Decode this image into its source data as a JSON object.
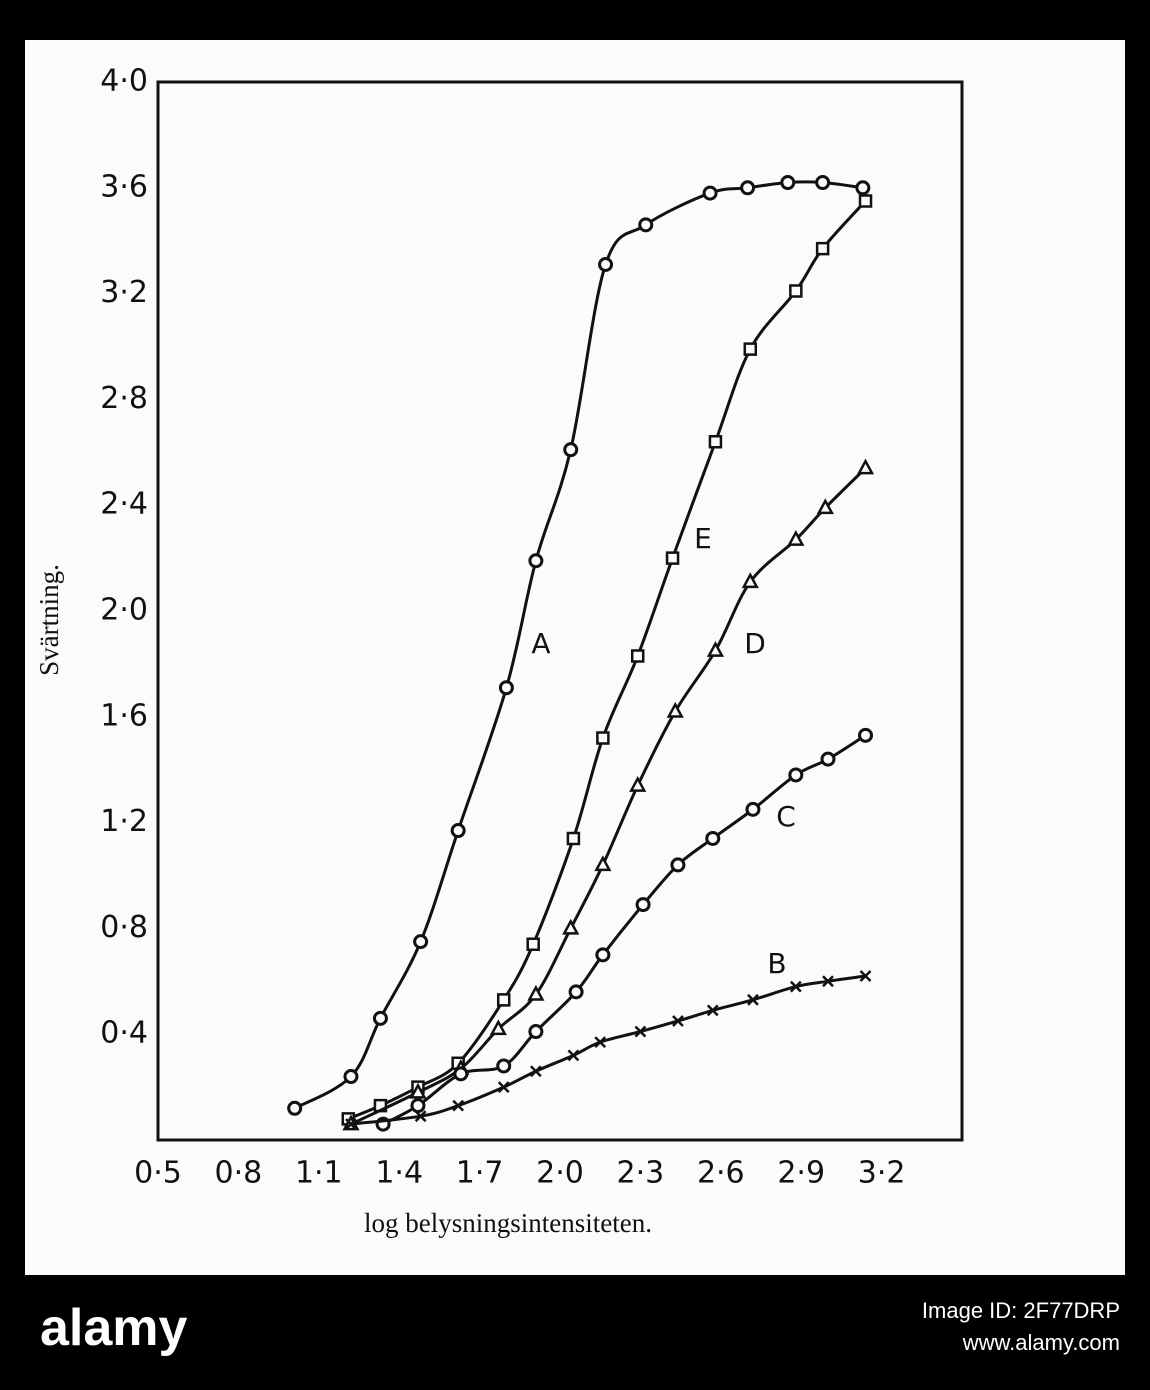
{
  "chart_data": {
    "type": "line",
    "xlabel": "log belysningsintensiteten.",
    "ylabel": "Svärtning.",
    "xlim": [
      0.5,
      3.5
    ],
    "ylim": [
      0,
      4.0
    ],
    "xticks": [
      {
        "value": 0.5,
        "label": "0·5"
      },
      {
        "value": 0.8,
        "label": "0·8"
      },
      {
        "value": 1.1,
        "label": "1·1"
      },
      {
        "value": 1.4,
        "label": "1·4"
      },
      {
        "value": 1.7,
        "label": "1·7"
      },
      {
        "value": 2.0,
        "label": "2·0"
      },
      {
        "value": 2.3,
        "label": "2·3"
      },
      {
        "value": 2.6,
        "label": "2·6"
      },
      {
        "value": 2.9,
        "label": "2·9"
      },
      {
        "value": 3.2,
        "label": "3·2"
      }
    ],
    "yticks": [
      {
        "value": 0.4,
        "label": "0·4"
      },
      {
        "value": 0.8,
        "label": "0·8"
      },
      {
        "value": 1.2,
        "label": "1·2"
      },
      {
        "value": 1.6,
        "label": "1·6"
      },
      {
        "value": 2.0,
        "label": "2·0"
      },
      {
        "value": 2.4,
        "label": "2·4"
      },
      {
        "value": 2.8,
        "label": "2·8"
      },
      {
        "value": 3.2,
        "label": "3·2"
      },
      {
        "value": 3.6,
        "label": "3·6"
      },
      {
        "value": 4.0,
        "label": "4·0"
      }
    ],
    "grid": false,
    "series": [
      {
        "name": "A",
        "marker": "circle",
        "color": "#111111",
        "x": [
          1.01,
          1.22,
          1.33,
          1.48,
          1.62,
          1.8,
          1.91,
          2.04,
          2.17,
          2.32,
          2.56,
          2.7,
          2.85,
          2.98,
          3.13
        ],
        "values": [
          0.12,
          0.24,
          0.46,
          0.75,
          1.17,
          1.71,
          2.19,
          2.61,
          3.31,
          3.46,
          3.58,
          3.6,
          3.62,
          3.62,
          3.6
        ]
      },
      {
        "name": "E",
        "marker": "square",
        "color": "#111111",
        "x": [
          1.21,
          1.33,
          1.47,
          1.62,
          1.79,
          1.9,
          2.05,
          2.16,
          2.29,
          2.42,
          2.58,
          2.71,
          2.88,
          2.98,
          3.14
        ],
        "values": [
          0.08,
          0.13,
          0.2,
          0.29,
          0.53,
          0.74,
          1.14,
          1.52,
          1.83,
          2.2,
          2.64,
          2.99,
          3.21,
          3.37,
          3.55
        ]
      },
      {
        "name": "D",
        "marker": "triangle",
        "color": "#111111",
        "x": [
          1.22,
          1.47,
          1.63,
          1.77,
          1.91,
          2.04,
          2.16,
          2.29,
          2.43,
          2.58,
          2.71,
          2.88,
          2.99,
          3.14
        ],
        "values": [
          0.06,
          0.18,
          0.27,
          0.42,
          0.55,
          0.8,
          1.04,
          1.34,
          1.62,
          1.85,
          2.11,
          2.27,
          2.39,
          2.54
        ]
      },
      {
        "name": "C",
        "marker": "circle",
        "color": "#111111",
        "x": [
          1.34,
          1.47,
          1.63,
          1.79,
          1.91,
          2.06,
          2.16,
          2.31,
          2.44,
          2.57,
          2.72,
          2.88,
          3.0,
          3.14
        ],
        "values": [
          0.06,
          0.13,
          0.25,
          0.28,
          0.41,
          0.56,
          0.7,
          0.89,
          1.04,
          1.14,
          1.25,
          1.38,
          1.44,
          1.53
        ]
      },
      {
        "name": "B",
        "marker": "cross",
        "color": "#111111",
        "x": [
          1.22,
          1.48,
          1.62,
          1.79,
          1.91,
          2.05,
          2.15,
          2.3,
          2.44,
          2.57,
          2.72,
          2.88,
          3.0,
          3.14
        ],
        "values": [
          0.06,
          0.09,
          0.13,
          0.2,
          0.26,
          0.32,
          0.37,
          0.41,
          0.45,
          0.49,
          0.53,
          0.58,
          0.6,
          0.62
        ]
      }
    ]
  },
  "watermark": {
    "logo": "alamy",
    "image_id": "Image ID: 2F77DRP",
    "url": "www.alamy.com"
  }
}
